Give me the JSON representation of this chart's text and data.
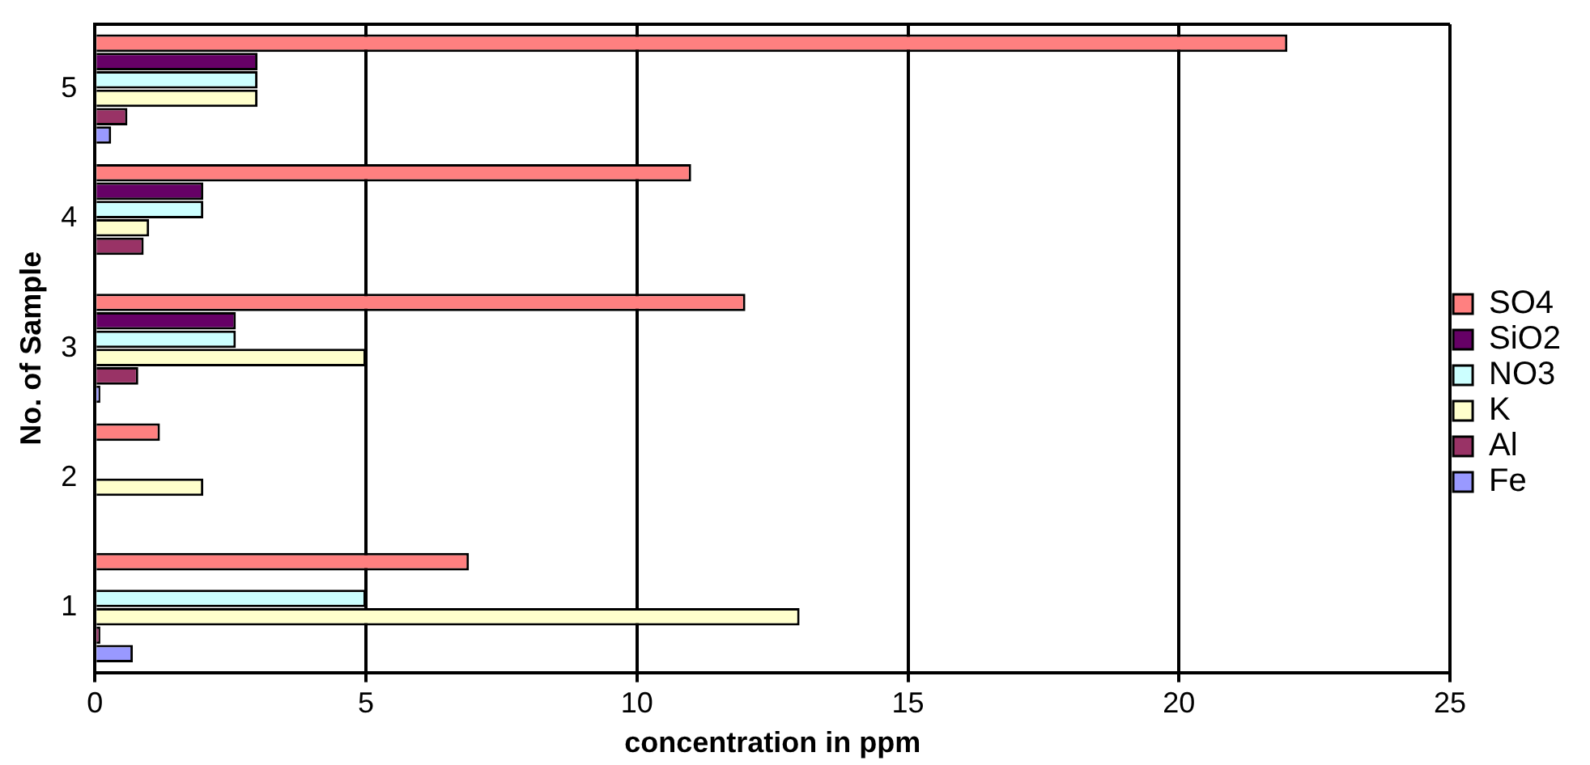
{
  "chart_data": {
    "type": "bar",
    "orientation": "horizontal",
    "xlabel": "concentration in ppm",
    "ylabel": "No. of Sample",
    "categories": [
      "5",
      "4",
      "3",
      "2",
      "1"
    ],
    "series": [
      {
        "name": "SO4",
        "color": "#ff8080",
        "values": [
          22,
          11,
          12,
          1.2,
          6.9
        ]
      },
      {
        "name": "SiO2",
        "color": "#660066",
        "values": [
          3,
          2,
          2.6,
          null,
          null
        ]
      },
      {
        "name": "NO3",
        "color": "#ccffff",
        "values": [
          3,
          2,
          2.6,
          null,
          5
        ]
      },
      {
        "name": "K",
        "color": "#ffffcc",
        "values": [
          3,
          1,
          5,
          2,
          13
        ]
      },
      {
        "name": "Al",
        "color": "#993366",
        "values": [
          0.6,
          0.9,
          0.8,
          null,
          0.1
        ]
      },
      {
        "name": "Fe",
        "color": "#9999ff",
        "values": [
          0.3,
          null,
          0.1,
          null,
          0.7
        ]
      }
    ],
    "xlim": [
      0,
      25
    ],
    "xticks": [
      0,
      5,
      10,
      15,
      20,
      25
    ],
    "grid": "x",
    "legend": "right"
  }
}
